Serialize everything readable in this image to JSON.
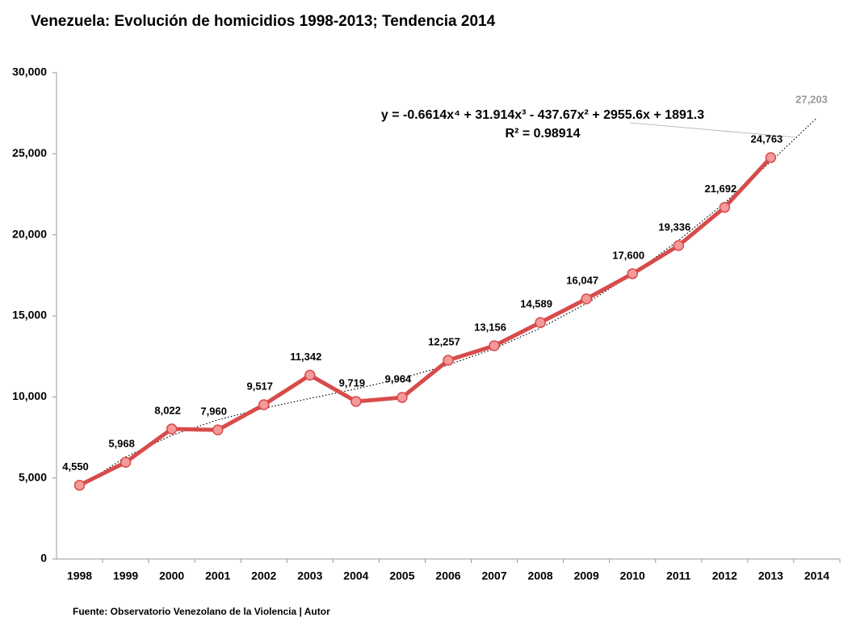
{
  "chart_data": {
    "type": "line",
    "title": "Venezuela: Evolución de homicidios 1998-2013; Tendencia 2014",
    "source": "Fuente: Observatorio Venezolano de la Violencia | Autor",
    "categories": [
      "1998",
      "1999",
      "2000",
      "2001",
      "2002",
      "2003",
      "2004",
      "2005",
      "2006",
      "2007",
      "2008",
      "2009",
      "2010",
      "2011",
      "2012",
      "2013",
      "2014"
    ],
    "series": [
      {
        "color": "#d84b4b",
        "marker_color": "#f59a9a",
        "values": [
          4550,
          5968,
          8022,
          7960,
          9517,
          11342,
          9719,
          9964,
          12257,
          13156,
          14589,
          16047,
          17600,
          19336,
          21692,
          24763,
          null
        ],
        "value_labels": [
          "4,550",
          "5,968",
          "8,022",
          "7,960",
          "9,517",
          "11,342",
          "9,719",
          "9,964",
          "12,257",
          "13,156",
          "14,589",
          "16,047",
          "17,600",
          "19,336",
          "21,692",
          "24,763",
          null
        ]
      },
      {
        "color": "#000000",
        "style": "dotted",
        "values": [
          4441,
          6297,
          7627,
          8584,
          9303,
          9905,
          10493,
          11156,
          11966,
          12980,
          14239,
          15767,
          17573,
          19650,
          21976,
          24512,
          27203
        ]
      }
    ],
    "annotations": [
      "y = -0.6614x⁴ + 31.914x³ - 437.67x² + 2955.6x + 1891.3",
      "R² = 0.98914",
      "27,203"
    ],
    "ylim": [
      0,
      30000
    ],
    "yticks": [
      0,
      {
        "value": 5000,
        "label": "5,000"
      },
      {
        "value": 10000,
        "label": "10,000"
      },
      {
        "value": 15000,
        "label": "15,000"
      },
      {
        "value": 20000,
        "label": "20,000"
      },
      {
        "value": 25000,
        "label": "25,000"
      },
      {
        "value": 30000,
        "label": "30,000"
      }
    ],
    "grid": false
  }
}
